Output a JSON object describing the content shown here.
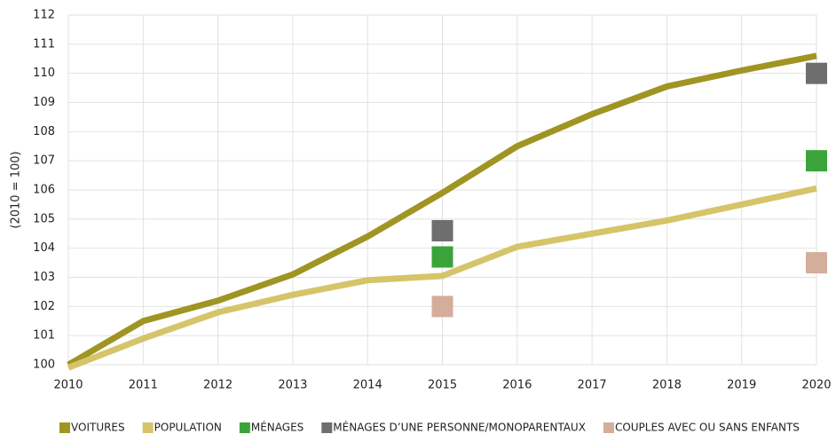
{
  "chart_data": {
    "type": "line",
    "y_label": "(2010 = 100)",
    "x": [
      2010,
      2011,
      2012,
      2013,
      2014,
      2015,
      2016,
      2017,
      2018,
      2019,
      2020
    ],
    "xlim": [
      2010,
      2020
    ],
    "xticks": [
      2010,
      2011,
      2012,
      2013,
      2014,
      2015,
      2016,
      2017,
      2018,
      2019,
      2020
    ],
    "ylim": [
      100,
      112
    ],
    "yticks": [
      100,
      101,
      102,
      103,
      104,
      105,
      106,
      107,
      108,
      109,
      110,
      111,
      112
    ],
    "grid": true,
    "legend": "bottom",
    "series": [
      {
        "name": "VOITURES",
        "color": "#a09423",
        "kind": "line",
        "values": [
          100,
          101.5,
          102.2,
          103.1,
          104.4,
          105.9,
          107.5,
          108.6,
          109.55,
          110.1,
          110.6
        ]
      },
      {
        "name": "POPULATION",
        "color": "#d6c46a",
        "kind": "line",
        "values": [
          99.9,
          100.9,
          101.8,
          102.4,
          102.9,
          103.05,
          104.05,
          104.5,
          104.95,
          105.5,
          106.05
        ]
      },
      {
        "name": "MÉNAGES",
        "color": "#3aa43a",
        "kind": "marker",
        "values": [
          null,
          null,
          null,
          null,
          null,
          103.7,
          null,
          null,
          null,
          null,
          107.0
        ]
      },
      {
        "name": "MÉNAGES D’UNE PERSONNE/MONOPARENTAUX",
        "color": "#6e6e6e",
        "kind": "marker",
        "values": [
          null,
          null,
          null,
          null,
          null,
          104.6,
          null,
          null,
          null,
          null,
          110.0
        ]
      },
      {
        "name": "COUPLES AVEC OU SANS ENFANTS",
        "color": "#d4ae9a",
        "kind": "marker",
        "values": [
          null,
          null,
          null,
          null,
          null,
          102.0,
          null,
          null,
          null,
          null,
          103.5
        ]
      }
    ]
  }
}
